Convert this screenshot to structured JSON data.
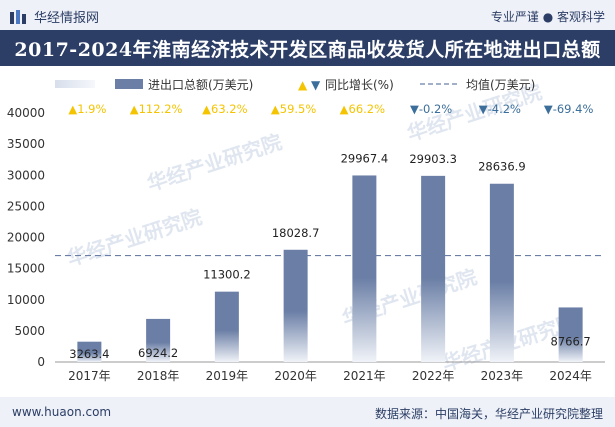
{
  "header": {
    "brand": "华经情报网",
    "tags": "专业严谨 ● 客观科学",
    "title": "2017-2024年淮南经济技术开发区商品收发货人所在地进出口总额"
  },
  "footer": {
    "site": "www.huaon.com",
    "source": "数据来源：中国海关，华经产业研究院整理"
  },
  "watermark": "华经产业研究院",
  "colors": {
    "bar": "#6b7fa6",
    "up": "#f5c400",
    "down": "#3b6e9a",
    "average": "#6b7fa6",
    "title_bg": "#2c3e66"
  },
  "chart_data": {
    "type": "bar",
    "categories": [
      "2017年",
      "2018年",
      "2019年",
      "2020年",
      "2021年",
      "2022年",
      "2023年",
      "2024年"
    ],
    "series": [
      {
        "name": "进出口总额(万美元)",
        "values": [
          3263.4,
          6924.2,
          11300.2,
          18028.7,
          29967.4,
          29903.3,
          28636.9,
          8766.7
        ]
      }
    ],
    "value_labels": [
      "3263.4",
      "6924.2",
      "11300.2",
      "18028.7",
      "29967.4",
      "29903.3",
      "28636.9",
      "8766.7"
    ],
    "growth": {
      "name": "同比增长(%)",
      "values": [
        1.9,
        112.2,
        63.2,
        59.5,
        66.2,
        -0.2,
        -4.2,
        -69.4
      ],
      "labels": [
        "1.9%",
        "112.2%",
        "63.2%",
        "59.5%",
        "66.2%",
        "-0.2%",
        "-4.2%",
        "-69.4%"
      ]
    },
    "average": {
      "name": "均值(万美元)",
      "value": 17098.7
    },
    "yticks": [
      "0",
      "5000",
      "10000",
      "15000",
      "20000",
      "25000",
      "30000",
      "35000",
      "40000"
    ],
    "ylim": [
      0,
      40000
    ],
    "legend_position": "top",
    "grid": false
  }
}
